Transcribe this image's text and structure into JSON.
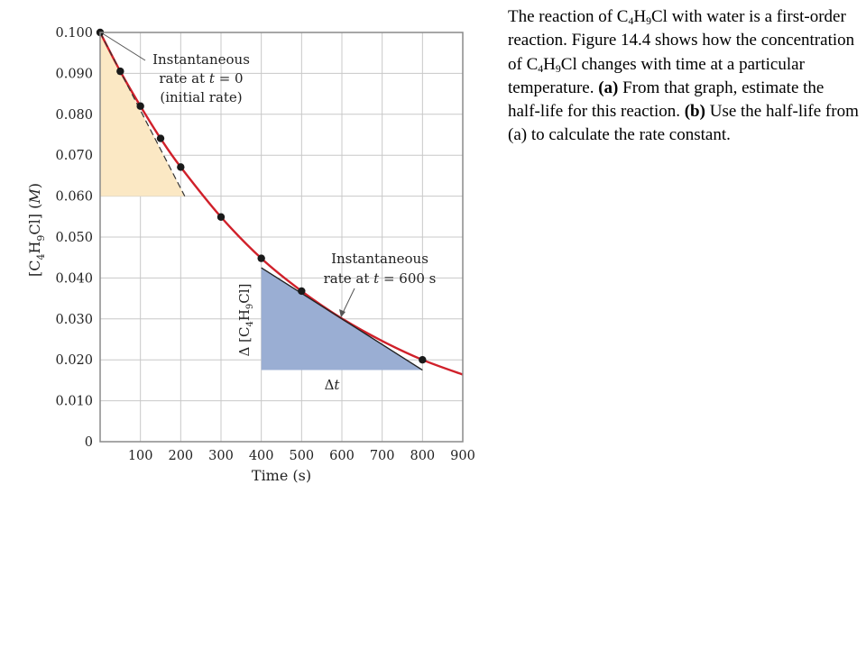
{
  "chart_data": {
    "type": "line",
    "xlabel": "Time (s)",
    "ylabel": "[C4H9Cl] (M)",
    "xlim": [
      0,
      900
    ],
    "ylim": [
      0,
      0.1
    ],
    "xticks": [
      0,
      100,
      200,
      300,
      400,
      500,
      600,
      700,
      800,
      900
    ],
    "xtick_labels": [
      "100",
      "200",
      "300",
      "400",
      "500",
      "600",
      "700",
      "800",
      "900"
    ],
    "yticks": [
      0,
      0.01,
      0.02,
      0.03,
      0.04,
      0.05,
      0.06,
      0.07,
      0.08,
      0.09,
      0.1
    ],
    "ytick_labels": [
      "0",
      "0.010",
      "0.020",
      "0.030",
      "0.040",
      "0.050",
      "0.060",
      "0.070",
      "0.080",
      "0.090",
      "0.100"
    ],
    "grid": true,
    "series": [
      {
        "color": "#d0202a",
        "style": "curve",
        "x": [
          0,
          50,
          100,
          150,
          200,
          300,
          400,
          500,
          600,
          700,
          800,
          900
        ],
        "y": [
          0.1,
          0.0905,
          0.082,
          0.0741,
          0.0671,
          0.0549,
          0.0448,
          0.0368,
          0.0301,
          0.0246,
          0.02,
          0.0164
        ]
      },
      {
        "color": "#1a1a1a",
        "style": "markers",
        "x": [
          0,
          50,
          100,
          150,
          200,
          300,
          400,
          500,
          800
        ],
        "y": [
          0.1,
          0.0905,
          0.082,
          0.0741,
          0.0671,
          0.0549,
          0.0448,
          0.0368,
          0.02
        ]
      }
    ],
    "annotations": {
      "initial_rate": {
        "line1": "Instantaneous",
        "line2_prefix": "rate at ",
        "line2_var": "t",
        "line2_suffix": " = 0",
        "line3": "(initial rate)",
        "tangent_from": [
          0,
          0.1
        ],
        "tangent_to": [
          210,
          0.06
        ],
        "fill_color": "#fbe8c4"
      },
      "rate_600": {
        "line1": "Instantaneous",
        "line2_prefix": "rate at ",
        "line2_var": "t",
        "line2_suffix": " = 600 s",
        "tangent_from": [
          400,
          0.0425
        ],
        "tangent_to": [
          800,
          0.0175
        ],
        "fill_color": "#9aaed3",
        "delta_y_label": "Δ [C4H9Cl]",
        "delta_t_label": "Δt"
      }
    }
  },
  "question": {
    "p1_a": "The reaction of C",
    "p1_sub1": "4",
    "p1_b": "H",
    "p1_sub2": "9",
    "p1_c": "Cl with water is a first-order reaction. Figure 14.4 shows how the concentration of C",
    "p1_sub3": "4",
    "p1_d": "H",
    "p1_sub4": "9",
    "p1_e": "Cl changes with time at a particular temperature. ",
    "part_a_label": "(a)",
    "part_a_text": " From that graph, estimate the half-life for this reaction. ",
    "part_b_label": "(b)",
    "part_b_text": " Use the half-life from (a) to calculate the rate constant."
  }
}
